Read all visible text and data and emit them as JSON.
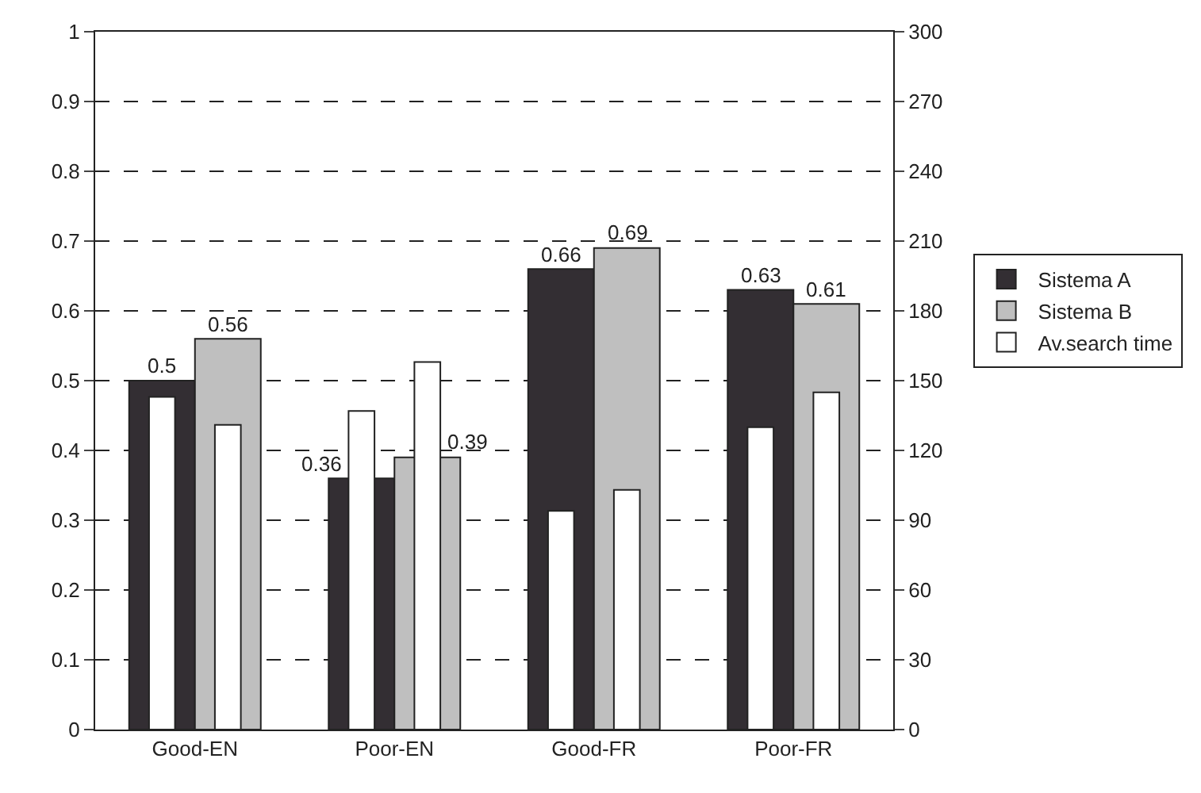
{
  "chart_data": {
    "type": "bar",
    "categories": [
      "Good-EN",
      "Poor-EN",
      "Good-FR",
      "Poor-FR"
    ],
    "series": [
      {
        "name": "Sistema A",
        "color": "#332e33",
        "values": [
          0.5,
          0.36,
          0.66,
          0.63
        ],
        "value_labels": [
          "0.5",
          "0.36",
          "0.66",
          "0.63"
        ]
      },
      {
        "name": "Sistema B",
        "color": "#bfbfbf",
        "values": [
          0.56,
          0.39,
          0.69,
          0.61
        ],
        "value_labels": [
          "0.56",
          "0.39",
          "0.69",
          "0.61"
        ]
      },
      {
        "name": "Av.search time",
        "color": "#ffffff",
        "axis": "y2",
        "values": [
          143,
          137,
          94,
          130
        ]
      },
      {
        "color": "#ffffff",
        "axis": "y2",
        "values": [
          131,
          158,
          103,
          145
        ]
      }
    ],
    "ylim": [
      0,
      1
    ],
    "yticks": [
      0,
      0.1,
      0.2,
      0.3,
      0.4,
      0.5,
      0.6,
      0.7,
      0.8,
      0.9,
      1
    ],
    "y2lim": [
      0,
      300
    ],
    "y2ticks": [
      0,
      30,
      60,
      90,
      120,
      150,
      180,
      210,
      240,
      270,
      300
    ],
    "grid": "y",
    "legend": "right"
  }
}
